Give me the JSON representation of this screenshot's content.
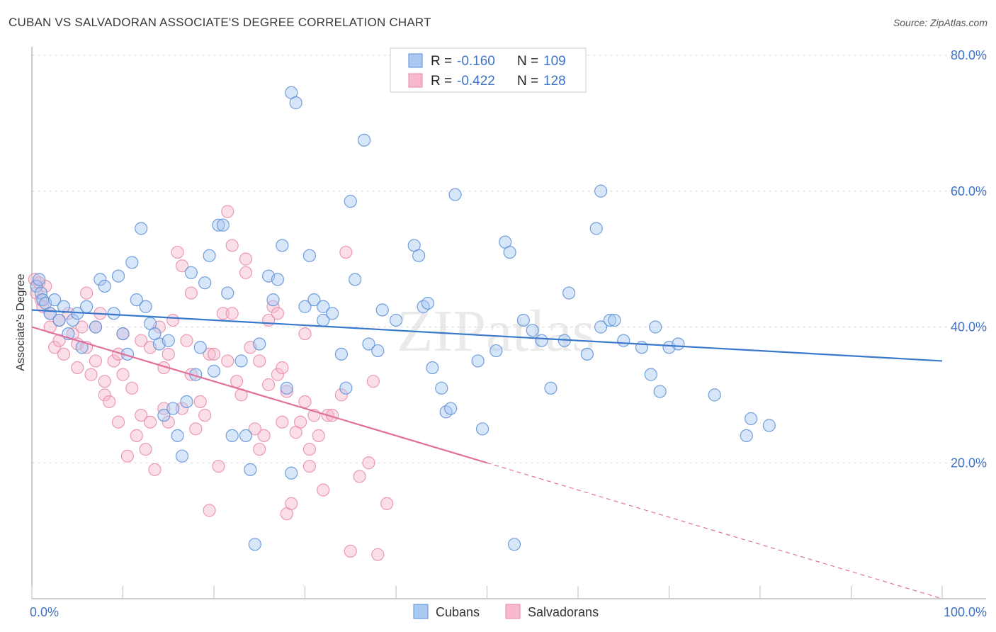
{
  "title": "CUBAN VS SALVADORAN ASSOCIATE'S DEGREE CORRELATION CHART",
  "source": "Source: ZipAtlas.com",
  "watermark": "ZIPatlas",
  "colors": {
    "cubans_fill": "#a9c8f2",
    "cubans_stroke": "#5b8fd6",
    "cubans_line": "#3a78cc",
    "salvadorans_fill": "#f7b8cb",
    "salvadorans_stroke": "#e88aa8",
    "salvadorans_line": "#e0709a",
    "axis_text": "#3f73c7",
    "grid": "#dddddd"
  },
  "legend": {
    "r_label": "R =",
    "n_label": "N =",
    "cubans_r": "-0.160",
    "cubans_n": "109",
    "salvadorans_r": "-0.422",
    "salvadorans_n": "128"
  },
  "chart_data": {
    "type": "scatter",
    "ylabel": "Associate's Degree",
    "xlabel": "",
    "xlim": [
      0,
      100
    ],
    "ylim": [
      0,
      80
    ],
    "x_tick_labels": [
      "0.0%",
      "100.0%"
    ],
    "y_ticks": [
      20,
      40,
      60,
      80
    ],
    "y_tick_labels": [
      "20.0%",
      "40.0%",
      "60.0%",
      "80.0%"
    ],
    "grid": "horizontal dashed",
    "legend_position": "top-center",
    "series": [
      {
        "name": "Cubans",
        "trend": {
          "x0": 0,
          "y0": 42.5,
          "x1": 100,
          "y1": 35.0,
          "solid_until": 100
        },
        "points": [
          [
            0.5,
            46
          ],
          [
            0.8,
            47
          ],
          [
            1,
            45
          ],
          [
            1.2,
            44
          ],
          [
            1.5,
            43.5
          ],
          [
            2,
            42
          ],
          [
            2.5,
            44
          ],
          [
            3,
            41
          ],
          [
            3.5,
            43
          ],
          [
            4,
            39
          ],
          [
            4.5,
            41
          ],
          [
            5,
            42
          ],
          [
            5.5,
            37
          ],
          [
            6,
            43
          ],
          [
            7,
            40
          ],
          [
            7.5,
            47
          ],
          [
            8,
            46
          ],
          [
            9,
            42
          ],
          [
            9.5,
            47.5
          ],
          [
            10,
            39
          ],
          [
            10.5,
            36
          ],
          [
            11,
            49.5
          ],
          [
            11.5,
            44
          ],
          [
            12,
            54.5
          ],
          [
            12.5,
            43
          ],
          [
            13,
            40.5
          ],
          [
            13.5,
            39
          ],
          [
            14,
            37.5
          ],
          [
            14.5,
            27
          ],
          [
            15,
            38
          ],
          [
            15.5,
            28
          ],
          [
            16,
            24
          ],
          [
            16.5,
            21
          ],
          [
            17,
            29
          ],
          [
            17.5,
            48
          ],
          [
            18,
            33
          ],
          [
            18.5,
            37
          ],
          [
            19,
            46.5
          ],
          [
            19.5,
            50.5
          ],
          [
            20,
            33.5
          ],
          [
            20.5,
            55
          ],
          [
            21,
            55
          ],
          [
            21.5,
            45
          ],
          [
            22,
            24
          ],
          [
            23,
            35
          ],
          [
            23.5,
            24
          ],
          [
            24,
            19
          ],
          [
            24.5,
            8
          ],
          [
            25,
            37.5
          ],
          [
            26,
            47.5
          ],
          [
            26.5,
            44
          ],
          [
            27,
            47
          ],
          [
            27.5,
            52
          ],
          [
            28,
            31
          ],
          [
            28.5,
            18.5
          ],
          [
            28.5,
            74.5
          ],
          [
            29,
            73
          ],
          [
            30,
            43
          ],
          [
            30.5,
            50.5
          ],
          [
            31,
            44
          ],
          [
            32,
            43
          ],
          [
            32,
            41
          ],
          [
            33,
            42
          ],
          [
            34,
            36
          ],
          [
            34.5,
            31
          ],
          [
            35,
            58.5
          ],
          [
            35.5,
            47
          ],
          [
            36.5,
            67.5
          ],
          [
            37,
            37.5
          ],
          [
            38,
            36.5
          ],
          [
            38.5,
            42.5
          ],
          [
            40,
            41
          ],
          [
            42,
            52
          ],
          [
            42.5,
            50.5
          ],
          [
            43,
            43
          ],
          [
            43.5,
            43.5
          ],
          [
            44,
            34
          ],
          [
            45,
            31
          ],
          [
            45.5,
            27.5
          ],
          [
            46,
            28
          ],
          [
            46.5,
            59.5
          ],
          [
            49,
            35
          ],
          [
            49.5,
            25
          ],
          [
            51,
            36.5
          ],
          [
            52,
            52.5
          ],
          [
            52.5,
            51
          ],
          [
            53,
            8
          ],
          [
            54,
            41
          ],
          [
            55,
            39.5
          ],
          [
            56,
            38
          ],
          [
            57,
            31
          ],
          [
            58.5,
            38
          ],
          [
            59,
            45
          ],
          [
            61,
            36
          ],
          [
            62,
            54.5
          ],
          [
            62.5,
            60
          ],
          [
            62.5,
            40
          ],
          [
            63.5,
            41
          ],
          [
            64,
            41
          ],
          [
            65,
            38
          ],
          [
            67,
            37
          ],
          [
            68,
            33
          ],
          [
            68.5,
            40
          ],
          [
            69,
            30.5
          ],
          [
            70,
            37
          ],
          [
            71,
            37.5
          ],
          [
            75,
            30
          ],
          [
            78.5,
            24
          ],
          [
            79,
            26.5
          ],
          [
            81,
            25.5
          ]
        ]
      },
      {
        "name": "Salvadorans",
        "trend": {
          "x0": 0,
          "y0": 40.0,
          "x1": 100,
          "y1": 0.0,
          "solid_until": 50
        },
        "points": [
          [
            0.3,
            47
          ],
          [
            0.5,
            45
          ],
          [
            0.8,
            46.5
          ],
          [
            1,
            44
          ],
          [
            1.2,
            43
          ],
          [
            1.5,
            46
          ],
          [
            2,
            40
          ],
          [
            2,
            42
          ],
          [
            2.5,
            37
          ],
          [
            3,
            38
          ],
          [
            3,
            41
          ],
          [
            3.5,
            36
          ],
          [
            4,
            42
          ],
          [
            4.5,
            39
          ],
          [
            5,
            34
          ],
          [
            5,
            37.5
          ],
          [
            5.5,
            40
          ],
          [
            6,
            45
          ],
          [
            6,
            37
          ],
          [
            6.5,
            33
          ],
          [
            7,
            40
          ],
          [
            7,
            35
          ],
          [
            7.5,
            42
          ],
          [
            8,
            30
          ],
          [
            8,
            32
          ],
          [
            8.5,
            29
          ],
          [
            9,
            35
          ],
          [
            9.5,
            36
          ],
          [
            9.5,
            26
          ],
          [
            10,
            39
          ],
          [
            10,
            33
          ],
          [
            10.5,
            21
          ],
          [
            11,
            31
          ],
          [
            11.5,
            24
          ],
          [
            12,
            38
          ],
          [
            12,
            27
          ],
          [
            12.5,
            22
          ],
          [
            13,
            26
          ],
          [
            13,
            37
          ],
          [
            13.5,
            19
          ],
          [
            14,
            40
          ],
          [
            14.5,
            34
          ],
          [
            14.5,
            28
          ],
          [
            15,
            36
          ],
          [
            15,
            26
          ],
          [
            15.5,
            41
          ],
          [
            16,
            51
          ],
          [
            16.5,
            28
          ],
          [
            16.5,
            49
          ],
          [
            17,
            38
          ],
          [
            17.5,
            33
          ],
          [
            17.5,
            45
          ],
          [
            18,
            25
          ],
          [
            18.5,
            29
          ],
          [
            19,
            27
          ],
          [
            19.5,
            13
          ],
          [
            19.5,
            36
          ],
          [
            20,
            36
          ],
          [
            20.5,
            19.5
          ],
          [
            21,
            42
          ],
          [
            21.5,
            35
          ],
          [
            21.5,
            57
          ],
          [
            22,
            52
          ],
          [
            22,
            42
          ],
          [
            22.5,
            32
          ],
          [
            23,
            30
          ],
          [
            23.5,
            50
          ],
          [
            23.5,
            48
          ],
          [
            24,
            37
          ],
          [
            24.5,
            25
          ],
          [
            25,
            22
          ],
          [
            25,
            35
          ],
          [
            25.5,
            24
          ],
          [
            26,
            41
          ],
          [
            26,
            31.5
          ],
          [
            26.5,
            43
          ],
          [
            27,
            33
          ],
          [
            27,
            42
          ],
          [
            27.5,
            26
          ],
          [
            27.5,
            34
          ],
          [
            28,
            30.5
          ],
          [
            28,
            12.5
          ],
          [
            28.5,
            14
          ],
          [
            29,
            24.5
          ],
          [
            29.5,
            26
          ],
          [
            30,
            29
          ],
          [
            30,
            39
          ],
          [
            30.5,
            22
          ],
          [
            30.5,
            19.5
          ],
          [
            31,
            27
          ],
          [
            31.5,
            24
          ],
          [
            32,
            16
          ],
          [
            32.5,
            27
          ],
          [
            33,
            27
          ],
          [
            34,
            30
          ],
          [
            34.5,
            51
          ],
          [
            35,
            7
          ],
          [
            36,
            18
          ],
          [
            37,
            20
          ],
          [
            37.5,
            32
          ],
          [
            38,
            6.5
          ],
          [
            39,
            14
          ]
        ]
      }
    ]
  },
  "bottom_legend": [
    "Cubans",
    "Salvadorans"
  ]
}
